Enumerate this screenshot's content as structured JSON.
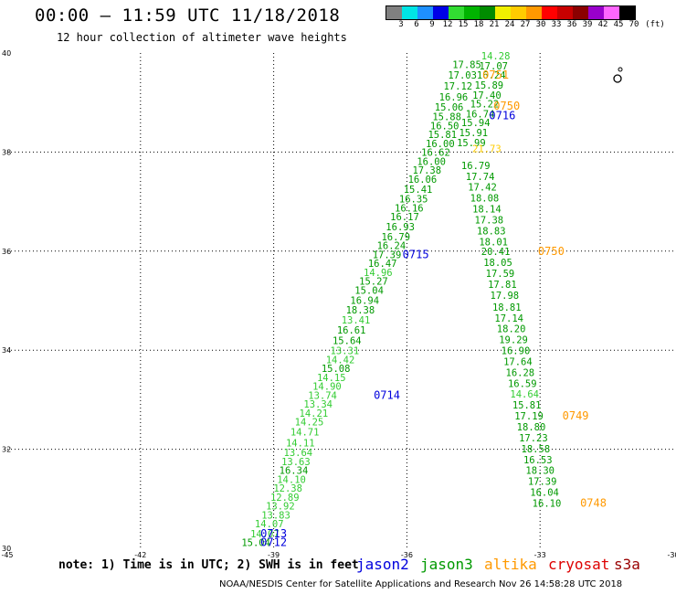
{
  "header": {
    "title": "00:00 – 11:59 UTC 11/18/2018",
    "subtitle": "12 hour collection of altimeter wave heights"
  },
  "colorbar": {
    "colors": [
      "#808080",
      "#00e5e5",
      "#1e90ff",
      "#0000e6",
      "#32dc32",
      "#00b400",
      "#008c00",
      "#f0f000",
      "#ffcc00",
      "#ff9900",
      "#ff0000",
      "#c80000",
      "#8b0000",
      "#9900cc",
      "#ff66ff",
      "#000000"
    ],
    "labels": [
      "3",
      "6",
      "9",
      "12",
      "15",
      "18",
      "21",
      "24",
      "27",
      "30",
      "33",
      "36",
      "39",
      "42",
      "45",
      "70",
      "(ft)"
    ]
  },
  "note": "note: 1) Time is in UTC; 2) SWH is in feet",
  "legend": [
    {
      "name": "jason2",
      "color": "#0000dd"
    },
    {
      "name": "jason3",
      "color": "#009900"
    },
    {
      "name": "altika",
      "color": "#ff9900"
    },
    {
      "name": "cryosat",
      "color": "#dd0000"
    },
    {
      "name": "s3a",
      "color": "#990000"
    }
  ],
  "footer": "NOAA/NESDIS Center for Satellite Applications and Research   Nov 26 14:58:28 UTC 2018",
  "chart_data": {
    "type": "scatter",
    "xlim": [
      -45,
      -30
    ],
    "ylim": [
      30,
      40
    ],
    "x_ticks": [
      "-45",
      "-42",
      "-39",
      "-36",
      "-33",
      "-30"
    ],
    "y_ticks": [
      "30",
      "32",
      "34",
      "36",
      "38",
      "40"
    ],
    "grid": true,
    "series": [
      {
        "name": "jason3",
        "color": "#009900",
        "light": "#33cc33",
        "points": [
          {
            "x": -39.4,
            "y": 30.05,
            "v": "15.04",
            "c": "d"
          },
          {
            "x": -39.2,
            "y": 30.22,
            "v": "14.07",
            "c": "l"
          },
          {
            "x": -39.1,
            "y": 30.42,
            "v": "14.07",
            "c": "l"
          },
          {
            "x": -38.95,
            "y": 30.6,
            "v": "13.83",
            "c": "l"
          },
          {
            "x": -38.85,
            "y": 30.78,
            "v": "13.92",
            "c": "l"
          },
          {
            "x": -38.75,
            "y": 30.96,
            "v": "12.89",
            "c": "l"
          },
          {
            "x": -38.68,
            "y": 31.14,
            "v": "12.38",
            "c": "l"
          },
          {
            "x": -38.6,
            "y": 31.32,
            "v": "14.10",
            "c": "l"
          },
          {
            "x": -38.55,
            "y": 31.5,
            "v": "16.34",
            "c": "d"
          },
          {
            "x": -38.5,
            "y": 31.68,
            "v": "13.63",
            "c": "l"
          },
          {
            "x": -38.45,
            "y": 31.86,
            "v": "13.64",
            "c": "l"
          },
          {
            "x": -38.4,
            "y": 32.06,
            "v": "14.11",
            "c": "l"
          },
          {
            "x": -38.3,
            "y": 32.28,
            "v": "14.71",
            "c": "l"
          },
          {
            "x": -38.2,
            "y": 32.48,
            "v": "14.25",
            "c": "l"
          },
          {
            "x": -38.1,
            "y": 32.66,
            "v": "14.21",
            "c": "l"
          },
          {
            "x": -38.0,
            "y": 32.84,
            "v": "13.34",
            "c": "l"
          },
          {
            "x": -37.9,
            "y": 33.02,
            "v": "13.74",
            "c": "l"
          },
          {
            "x": -37.8,
            "y": 33.2,
            "v": "14.90",
            "c": "l"
          },
          {
            "x": -37.7,
            "y": 33.38,
            "v": "14.15",
            "c": "l"
          },
          {
            "x": -37.6,
            "y": 33.56,
            "v": "15.08",
            "c": "d"
          },
          {
            "x": -37.5,
            "y": 33.74,
            "v": "14.42",
            "c": "l"
          },
          {
            "x": -37.4,
            "y": 33.92,
            "v": "13.31",
            "c": "l"
          },
          {
            "x": -37.35,
            "y": 34.12,
            "v": "15.64",
            "c": "d"
          },
          {
            "x": -37.25,
            "y": 34.34,
            "v": "16.61",
            "c": "d"
          },
          {
            "x": -37.15,
            "y": 34.54,
            "v": "13.41",
            "c": "l"
          },
          {
            "x": -37.05,
            "y": 34.74,
            "v": "18.38",
            "c": "d"
          },
          {
            "x": -36.95,
            "y": 34.94,
            "v": "16.94",
            "c": "d"
          },
          {
            "x": -36.85,
            "y": 35.14,
            "v": "15.04",
            "c": "d"
          },
          {
            "x": -36.75,
            "y": 35.32,
            "v": "15.27",
            "c": "d"
          },
          {
            "x": -36.65,
            "y": 35.5,
            "v": "14.96",
            "c": "l"
          },
          {
            "x": -36.55,
            "y": 35.68,
            "v": "16.47",
            "c": "d"
          },
          {
            "x": -36.45,
            "y": 35.86,
            "v": "17.39",
            "c": "d"
          },
          {
            "x": -36.35,
            "y": 36.04,
            "v": "16.24",
            "c": "d"
          },
          {
            "x": -36.25,
            "y": 36.22,
            "v": "16.79",
            "c": "d"
          },
          {
            "x": -36.15,
            "y": 36.42,
            "v": "16.93",
            "c": "d"
          },
          {
            "x": -36.05,
            "y": 36.62,
            "v": "16.17",
            "c": "d"
          },
          {
            "x": -35.95,
            "y": 36.8,
            "v": "16.16",
            "c": "d"
          },
          {
            "x": -35.85,
            "y": 36.98,
            "v": "16.35",
            "c": "d"
          },
          {
            "x": -35.75,
            "y": 37.18,
            "v": "15.41",
            "c": "d"
          },
          {
            "x": -35.65,
            "y": 37.38,
            "v": "16.06",
            "c": "d"
          },
          {
            "x": -35.55,
            "y": 37.56,
            "v": "17.38",
            "c": "d"
          },
          {
            "x": -35.45,
            "y": 37.74,
            "v": "16.00",
            "c": "d"
          },
          {
            "x": -35.35,
            "y": 37.92,
            "v": "16.62",
            "c": "d"
          },
          {
            "x": -35.25,
            "y": 38.1,
            "v": "16.00",
            "c": "d"
          },
          {
            "x": -35.2,
            "y": 38.28,
            "v": "15.81",
            "c": "d"
          },
          {
            "x": -35.15,
            "y": 38.46,
            "v": "16.50",
            "c": "d"
          },
          {
            "x": -35.1,
            "y": 38.64,
            "v": "15.88",
            "c": "d"
          },
          {
            "x": -35.05,
            "y": 38.84,
            "v": "15.06",
            "c": "d"
          },
          {
            "x": -34.95,
            "y": 39.04,
            "v": "16.96",
            "c": "d"
          },
          {
            "x": -34.85,
            "y": 39.26,
            "v": "17.12",
            "c": "d"
          },
          {
            "x": -34.75,
            "y": 39.48,
            "v": "17.03",
            "c": "d"
          },
          {
            "x": -34.65,
            "y": 39.7,
            "v": "17.85",
            "c": "d"
          },
          {
            "x": -34.0,
            "y": 39.87,
            "v": "14.28",
            "c": "l"
          },
          {
            "x": -34.05,
            "y": 39.67,
            "v": "17.07",
            "c": "d"
          },
          {
            "x": -34.1,
            "y": 39.48,
            "v": "16.24",
            "c": "d"
          },
          {
            "x": -34.15,
            "y": 39.28,
            "v": "15.89",
            "c": "d"
          },
          {
            "x": -34.2,
            "y": 39.08,
            "v": "17.40",
            "c": "d"
          },
          {
            "x": -34.25,
            "y": 38.9,
            "v": "15.22",
            "c": "d"
          },
          {
            "x": -34.35,
            "y": 38.7,
            "v": "16.74",
            "c": "d"
          },
          {
            "x": -34.45,
            "y": 38.52,
            "v": "15.94",
            "c": "d"
          },
          {
            "x": -34.5,
            "y": 38.32,
            "v": "15.91",
            "c": "d"
          },
          {
            "x": -34.55,
            "y": 38.12,
            "v": "15.99",
            "c": "d"
          },
          {
            "x": -34.45,
            "y": 37.66,
            "v": "16.79",
            "c": "d"
          },
          {
            "x": -34.35,
            "y": 37.44,
            "v": "17.74",
            "c": "d"
          },
          {
            "x": -34.3,
            "y": 37.22,
            "v": "17.42",
            "c": "d"
          },
          {
            "x": -34.25,
            "y": 37.0,
            "v": "18.08",
            "c": "d"
          },
          {
            "x": -34.2,
            "y": 36.78,
            "v": "18.14",
            "c": "d"
          },
          {
            "x": -34.15,
            "y": 36.56,
            "v": "17.38",
            "c": "d"
          },
          {
            "x": -34.1,
            "y": 36.34,
            "v": "18.83",
            "c": "d"
          },
          {
            "x": -34.05,
            "y": 36.12,
            "v": "18.01",
            "c": "d"
          },
          {
            "x": -34.0,
            "y": 35.92,
            "v": "20.41",
            "c": "d"
          },
          {
            "x": -33.95,
            "y": 35.7,
            "v": "18.05",
            "c": "d"
          },
          {
            "x": -33.9,
            "y": 35.48,
            "v": "17.59",
            "c": "d"
          },
          {
            "x": -33.85,
            "y": 35.26,
            "v": "17.81",
            "c": "d"
          },
          {
            "x": -33.8,
            "y": 35.04,
            "v": "17.98",
            "c": "d"
          },
          {
            "x": -33.75,
            "y": 34.8,
            "v": "18.81",
            "c": "d"
          },
          {
            "x": -33.7,
            "y": 34.58,
            "v": "17.14",
            "c": "d"
          },
          {
            "x": -33.65,
            "y": 34.36,
            "v": "18.20",
            "c": "d"
          },
          {
            "x": -33.6,
            "y": 34.14,
            "v": "19.29",
            "c": "d"
          },
          {
            "x": -33.55,
            "y": 33.92,
            "v": "16.90",
            "c": "d"
          },
          {
            "x": -33.5,
            "y": 33.7,
            "v": "17.64",
            "c": "d"
          },
          {
            "x": -33.45,
            "y": 33.48,
            "v": "16.28",
            "c": "d"
          },
          {
            "x": -33.4,
            "y": 33.26,
            "v": "16.59",
            "c": "d"
          },
          {
            "x": -33.35,
            "y": 33.04,
            "v": "14.64",
            "c": "l"
          },
          {
            "x": -33.3,
            "y": 32.82,
            "v": "15.81",
            "c": "d"
          },
          {
            "x": -33.25,
            "y": 32.6,
            "v": "17.19",
            "c": "d"
          },
          {
            "x": -33.2,
            "y": 32.38,
            "v": "18.80",
            "c": "d"
          },
          {
            "x": -33.15,
            "y": 32.16,
            "v": "17.23",
            "c": "d"
          },
          {
            "x": -33.1,
            "y": 31.94,
            "v": "18.58",
            "c": "d"
          },
          {
            "x": -33.05,
            "y": 31.72,
            "v": "16.53",
            "c": "d"
          },
          {
            "x": -33.0,
            "y": 31.5,
            "v": "18.30",
            "c": "d"
          },
          {
            "x": -32.95,
            "y": 31.28,
            "v": "17.39",
            "c": "d"
          },
          {
            "x": -32.9,
            "y": 31.06,
            "v": "16.04",
            "c": "d"
          },
          {
            "x": -32.85,
            "y": 30.84,
            "v": "16.10",
            "c": "d"
          }
        ]
      },
      {
        "name": "altika",
        "color": "#ff9900",
        "light": "#ffcc00",
        "points": [
          {
            "x": -34.2,
            "y": 38.0,
            "v": "21.73",
            "c": "l"
          }
        ]
      }
    ],
    "time_labels": [
      {
        "x": -39.0,
        "y": 30.05,
        "v": "0712",
        "color": "#0000dd"
      },
      {
        "x": -39.0,
        "y": 30.22,
        "v": "0713",
        "color": "#0000dd"
      },
      {
        "x": -36.45,
        "y": 33.02,
        "v": "0714",
        "color": "#0000dd"
      },
      {
        "x": -35.8,
        "y": 35.86,
        "v": "0715",
        "color": "#0000dd"
      },
      {
        "x": -33.85,
        "y": 38.66,
        "v": "0716",
        "color": "#0000dd"
      },
      {
        "x": -34.0,
        "y": 39.48,
        "v": "0751",
        "color": "#ff9900"
      },
      {
        "x": -33.75,
        "y": 38.86,
        "v": "0750",
        "color": "#ff9900"
      },
      {
        "x": -32.75,
        "y": 35.92,
        "v": "0750",
        "color": "#ff9900"
      },
      {
        "x": -32.2,
        "y": 32.6,
        "v": "0749",
        "color": "#ff9900"
      },
      {
        "x": -31.8,
        "y": 30.84,
        "v": "0748",
        "color": "#ff9900"
      }
    ]
  }
}
